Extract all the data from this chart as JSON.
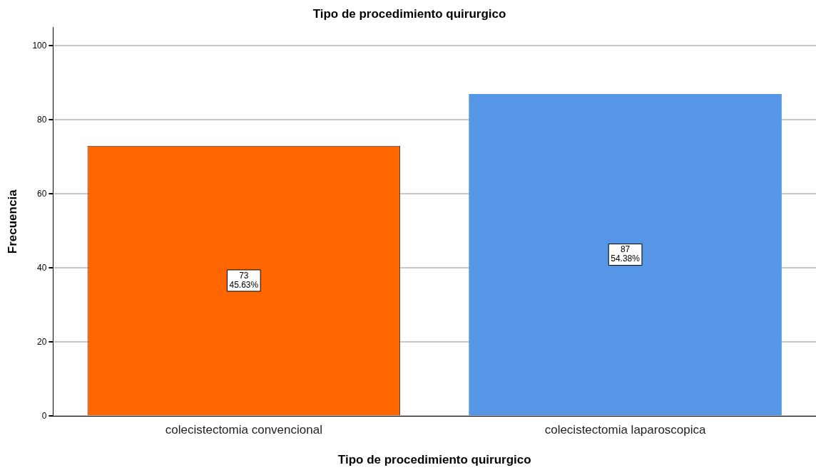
{
  "chart_data": {
    "type": "bar",
    "title": "Tipo de procedimiento quirurgico",
    "xlabel": "Tipo de procedimiento quirurgico",
    "ylabel": "Frecuencia",
    "categories": [
      "colecistectomia convencional",
      "colecistectomia laparoscopica"
    ],
    "values": [
      73,
      87
    ],
    "colors": [
      "#ff6600",
      "#5596e6"
    ],
    "value_labels": [
      "73\n45.63%",
      "87\n54.38%"
    ],
    "ylim": [
      0,
      105
    ],
    "yticks": [
      0,
      20,
      40,
      60,
      80,
      100
    ],
    "grid": "y",
    "legend": false
  }
}
